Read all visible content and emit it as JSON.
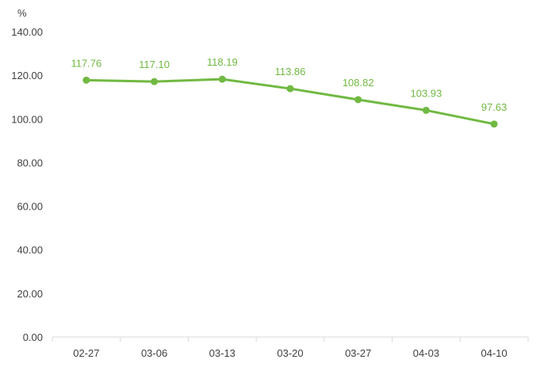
{
  "chart_data": {
    "type": "line",
    "title": "",
    "xlabel": "",
    "ylabel": "%",
    "categories": [
      "02-27",
      "03-06",
      "03-13",
      "03-20",
      "03-27",
      "04-03",
      "04-10"
    ],
    "series": [
      {
        "values": [
          117.76,
          117.1,
          118.19,
          113.86,
          108.82,
          103.93,
          97.63
        ],
        "labels": [
          "117.76",
          "117.10",
          "118.19",
          "113.86",
          "108.82",
          "103.93",
          "97.63"
        ],
        "color": "#70b942"
      }
    ],
    "ylim": [
      0,
      140
    ],
    "yticks": [
      "0.00",
      "20.00",
      "40.00",
      "60.00",
      "80.00",
      "100.00",
      "120.00",
      "140.00"
    ],
    "ytick_values": [
      0,
      20,
      40,
      60,
      80,
      100,
      120,
      140
    ],
    "grid": false,
    "legend": "none",
    "axis_color": "#d9d9d9",
    "text_color": "#404040"
  }
}
